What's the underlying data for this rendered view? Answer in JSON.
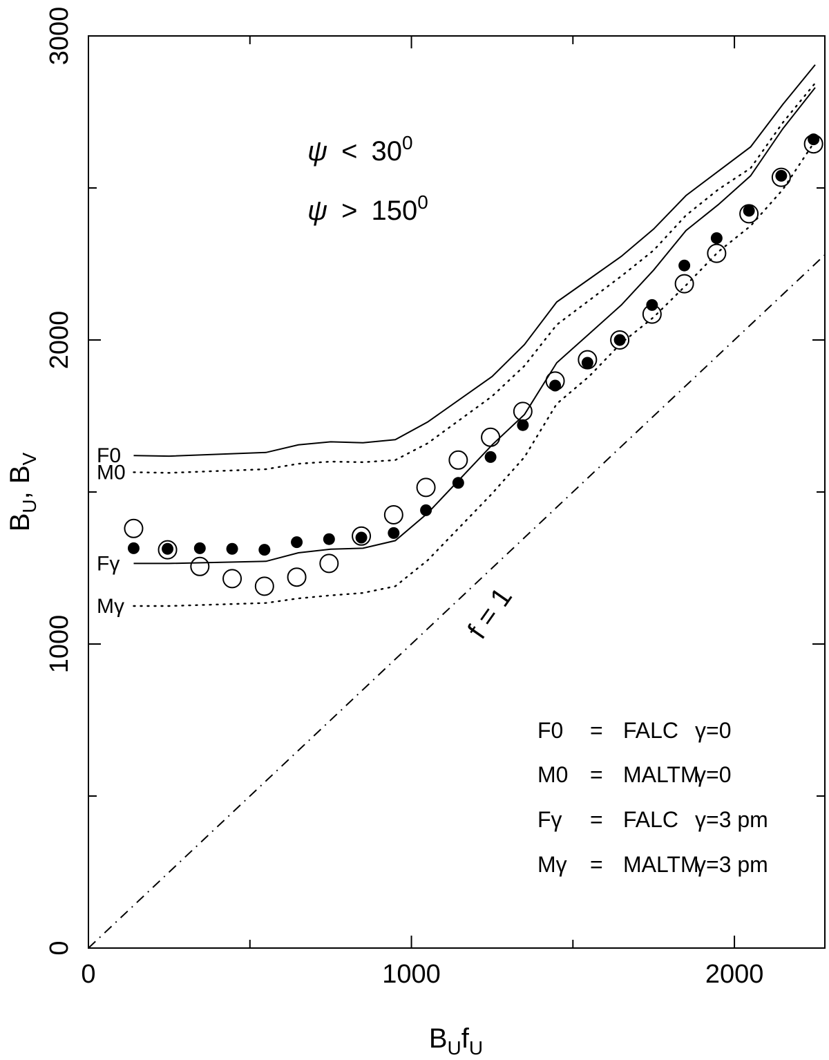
{
  "chart_data": {
    "type": "line",
    "xlabel": "B",
    "xlabel_sub1": "U",
    "xlabel_mid": "f",
    "xlabel_sub2": "U",
    "ylabel": "B",
    "ylabel_sub1": "U",
    "ylabel_mid": ", B",
    "ylabel_sub2": "V",
    "xlim": [
      0,
      2280
    ],
    "ylim": [
      0,
      3000
    ],
    "xticks_major": [
      0,
      1000,
      2000
    ],
    "xticks_major_labels": [
      "0",
      "1000",
      "2000"
    ],
    "xticks_minor": [
      500,
      1500
    ],
    "yticks_major": [
      0,
      1000,
      2000,
      3000
    ],
    "yticks_major_labels": [
      "0",
      "1000",
      "2000",
      "3000"
    ],
    "yticks_minor": [
      500,
      1500,
      2500
    ],
    "annotations": {
      "psi_symbol": "ψ",
      "psi1_rel": "<",
      "psi1_val": "30",
      "psi1_sup": "0",
      "psi2_rel": ">",
      "psi2_val": "150",
      "psi2_sup": "0",
      "ref_line_label": "f = 1"
    },
    "series": [
      {
        "name": "F0",
        "style": "solid",
        "label": "F0",
        "x": [
          140,
          250,
          550,
          650,
          750,
          850,
          950,
          1050,
          1250,
          1350,
          1450,
          1550,
          1650,
          1750,
          1850,
          1950,
          2050,
          2150,
          2250
        ],
        "y": [
          1620,
          1618,
          1630,
          1655,
          1665,
          1662,
          1672,
          1730,
          1880,
          1985,
          2125,
          2200,
          2275,
          2365,
          2475,
          2555,
          2635,
          2775,
          2905
        ]
      },
      {
        "name": "M0",
        "style": "dotted",
        "label": "M0",
        "x": [
          140,
          250,
          550,
          650,
          750,
          850,
          950,
          1050,
          1250,
          1350,
          1450,
          1550,
          1650,
          1750,
          1850,
          1950,
          2050,
          2150,
          2250
        ],
        "y": [
          1565,
          1563,
          1575,
          1593,
          1600,
          1598,
          1605,
          1660,
          1815,
          1915,
          2050,
          2130,
          2210,
          2295,
          2410,
          2495,
          2565,
          2715,
          2845
        ]
      },
      {
        "name": "Fγ",
        "style": "solid",
        "label": "Fγ",
        "x": [
          140,
          250,
          550,
          650,
          750,
          850,
          950,
          1050,
          1250,
          1350,
          1450,
          1550,
          1650,
          1750,
          1850,
          1950,
          2050,
          2150,
          2250
        ],
        "y": [
          1265,
          1265,
          1272,
          1300,
          1312,
          1315,
          1340,
          1430,
          1655,
          1755,
          1925,
          2020,
          2115,
          2230,
          2360,
          2445,
          2540,
          2695,
          2830
        ]
      },
      {
        "name": "Mγ",
        "style": "dotted",
        "label": "Mγ",
        "x": [
          140,
          250,
          550,
          650,
          750,
          850,
          950,
          1050,
          1250,
          1350,
          1450,
          1550,
          1650,
          1750,
          1850,
          1950,
          2050,
          2150,
          2250
        ],
        "y": [
          1125,
          1125,
          1135,
          1150,
          1160,
          1168,
          1190,
          1275,
          1495,
          1615,
          1790,
          1880,
          1990,
          2075,
          2180,
          2290,
          2375,
          2495,
          2655
        ]
      },
      {
        "name": "filled-points",
        "style": "filled-circle",
        "x": [
          140,
          245,
          345,
          445,
          545,
          645,
          745,
          845,
          945,
          1045,
          1145,
          1245,
          1345,
          1445,
          1545,
          1645,
          1745,
          1845,
          1945,
          2045,
          2145,
          2245
        ],
        "y": [
          1315,
          1313,
          1315,
          1313,
          1310,
          1335,
          1345,
          1350,
          1365,
          1440,
          1530,
          1615,
          1720,
          1850,
          1925,
          2000,
          2115,
          2245,
          2335,
          2425,
          2540,
          2660
        ]
      },
      {
        "name": "open-points",
        "style": "open-circle",
        "x": [
          140,
          245,
          345,
          445,
          545,
          645,
          745,
          845,
          945,
          1045,
          1145,
          1245,
          1345,
          1445,
          1545,
          1645,
          1745,
          1845,
          1945,
          2045,
          2145,
          2245
        ],
        "y": [
          1380,
          1310,
          1255,
          1215,
          1190,
          1220,
          1265,
          1355,
          1425,
          1515,
          1605,
          1680,
          1765,
          1865,
          1935,
          2000,
          2085,
          2185,
          2285,
          2415,
          2535,
          2645
        ]
      },
      {
        "name": "f = 1",
        "style": "dash-dot",
        "x": [
          0,
          2280
        ],
        "y": [
          0,
          2280
        ]
      }
    ],
    "legend": [
      {
        "key": "F0",
        "eq": "=",
        "name": "FALC",
        "gamma": "γ=0"
      },
      {
        "key": "M0",
        "eq": "=",
        "name": "MALTM",
        "gamma": "γ=0"
      },
      {
        "key": "Fγ",
        "eq": "=",
        "name": "FALC",
        "gamma": "γ=3 pm"
      },
      {
        "key": "Mγ",
        "eq": "=",
        "name": "MALTM",
        "gamma": "γ=3 pm"
      }
    ]
  }
}
